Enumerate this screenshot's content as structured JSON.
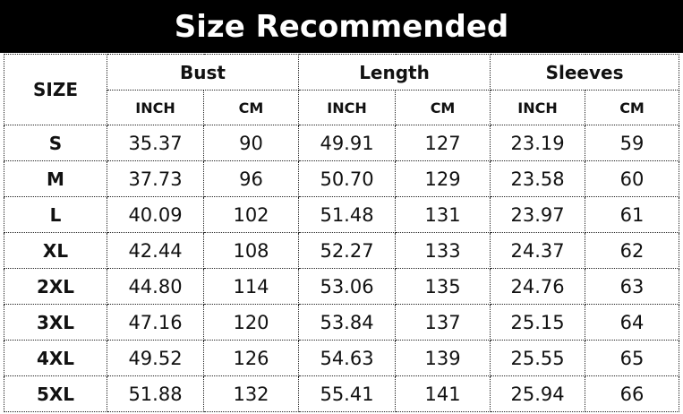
{
  "title": "Size Recommended",
  "headers": {
    "size": "SIZE",
    "groups": [
      "Bust",
      "Length",
      "Sleeves"
    ],
    "units": [
      "INCH",
      "CM",
      "INCH",
      "CM",
      "INCH",
      "CM"
    ]
  },
  "rows": [
    [
      "S",
      "35.37",
      "90",
      "49.91",
      "127",
      "23.19",
      "59"
    ],
    [
      "M",
      "37.73",
      "96",
      "50.70",
      "129",
      "23.58",
      "60"
    ],
    [
      "L",
      "40.09",
      "102",
      "51.48",
      "131",
      "23.97",
      "61"
    ],
    [
      "XL",
      "42.44",
      "108",
      "52.27",
      "133",
      "24.37",
      "62"
    ],
    [
      "2XL",
      "44.80",
      "114",
      "53.06",
      "135",
      "24.76",
      "63"
    ],
    [
      "3XL",
      "47.16",
      "120",
      "53.84",
      "137",
      "25.15",
      "64"
    ],
    [
      "4XL",
      "49.52",
      "126",
      "54.63",
      "139",
      "25.55",
      "65"
    ],
    [
      "5XL",
      "51.88",
      "132",
      "55.41",
      "141",
      "25.94",
      "66"
    ]
  ]
}
